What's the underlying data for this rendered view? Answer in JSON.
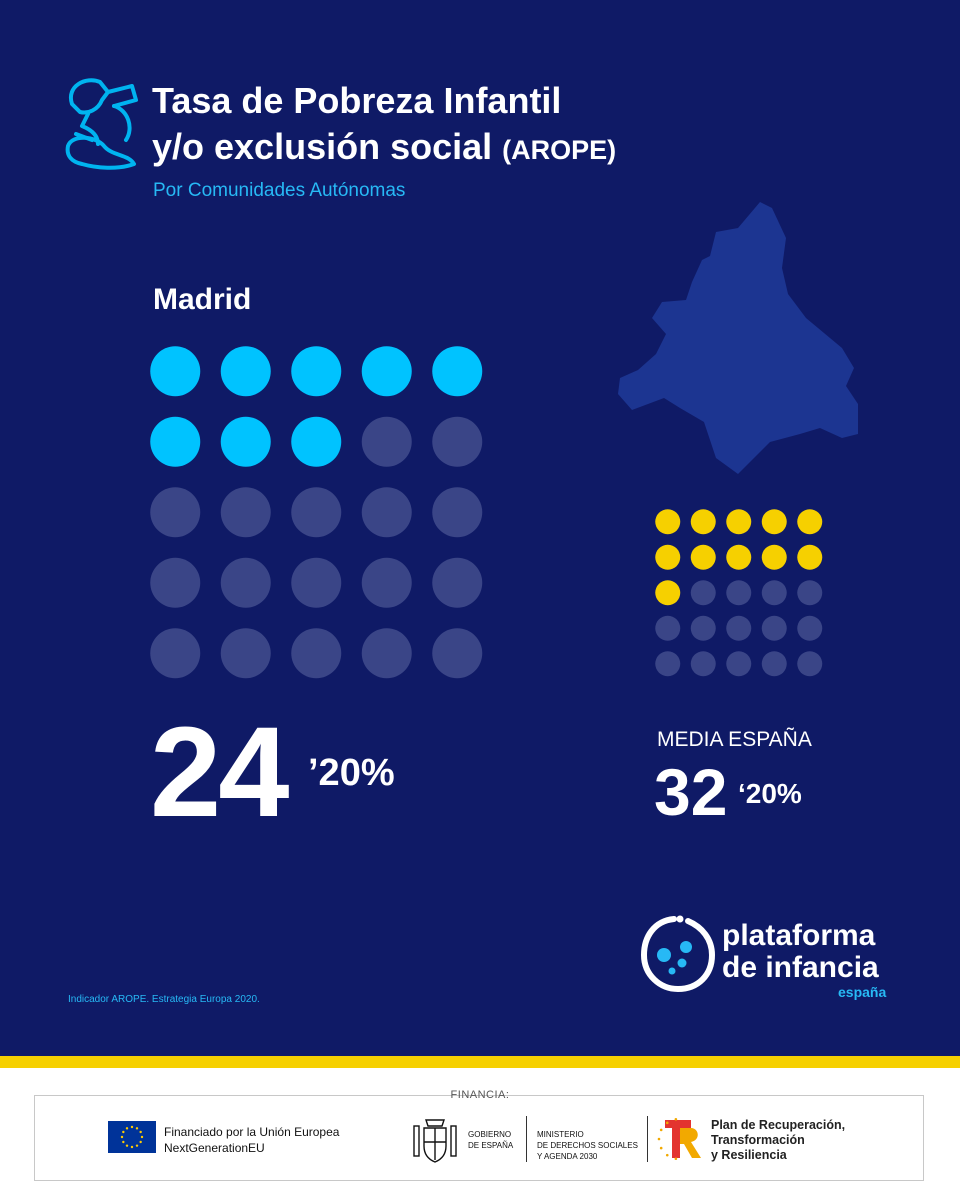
{
  "header": {
    "title_line1": "Tasa de Pobreza Infantil",
    "title_line2": "y/o exclusión social",
    "title_suffix": "(AROPE)",
    "subtitle": "Por Comunidades Autónomas"
  },
  "region": {
    "name": "Madrid",
    "value_int": "24",
    "value_dec": "’20%",
    "dots_filled": 8,
    "dots_total": 25
  },
  "national": {
    "label": "MEDIA ESPAÑA",
    "value_int": "32",
    "value_dec": "‘20%",
    "dots_filled": 11,
    "dots_total": 25
  },
  "note": "Indicador AROPE. Estrategia Europa 2020.",
  "logo": {
    "line1": "plataforma",
    "line2": "de infancia",
    "line3": "españa"
  },
  "footer": {
    "financia": "FINANCIA:",
    "eu_line1": "Financiado por la Unión Europea",
    "eu_line2": "NextGenerationEU",
    "gob_line1": "GOBIERNO",
    "gob_line2": "DE ESPAÑA",
    "min_line1": "MINISTERIO",
    "min_line2": "DE DERECHOS SOCIALES",
    "min_line3": "Y AGENDA 2030",
    "plan_line1": "Plan de Recuperación,",
    "plan_line2": "Transformación",
    "plan_line3": "y Resiliencia"
  },
  "colors": {
    "background": "#0f1a66",
    "accent_blue": "#00c3ff",
    "accent_yellow": "#f6d000",
    "dot_empty": "#3a4587",
    "map": "#1c3591"
  },
  "icons": [
    "child-icon",
    "madrid-map",
    "plataforma-logo-icon",
    "eu-flag-icon",
    "spain-coat-of-arms-icon",
    "recovery-plan-logo-icon"
  ]
}
